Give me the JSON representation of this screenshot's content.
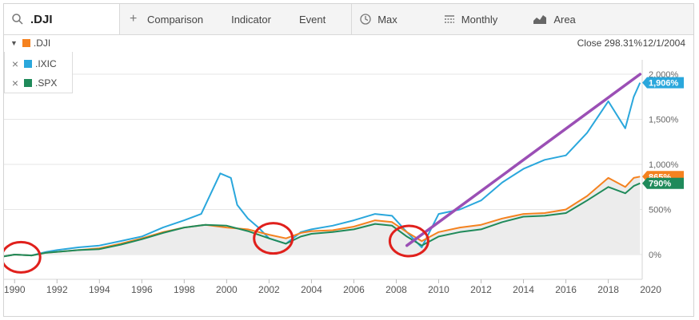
{
  "toolbar": {
    "symbol": ".DJI",
    "comparison": "Comparison",
    "indicator": "Indicator",
    "event": "Event",
    "range": "Max",
    "interval": "Monthly",
    "chart_style": "Area"
  },
  "legend": {
    "primary": {
      "label": ".DJI",
      "color": "#f5821f"
    },
    "compare": [
      {
        "label": ".IXIC",
        "color": "#2aa7dc"
      },
      {
        "label": ".SPX",
        "color": "#1f8a5a"
      }
    ]
  },
  "readout": {
    "close": "Close 298.31%",
    "date": "12/1/2004"
  },
  "tags": [
    {
      "text": "1,906%",
      "color": "#2aa7dc"
    },
    {
      "text": "865%",
      "color": "#f5821f"
    },
    {
      "text": "790%",
      "color": "#1f8a5a"
    }
  ],
  "chart_data": {
    "type": "line",
    "ylim": [
      -300,
      2000
    ],
    "yticks": [
      0,
      500,
      1000,
      1500,
      2000
    ],
    "ytick_labels": [
      "0%",
      "500%",
      "1,000%",
      "1,500%",
      "2,000%"
    ],
    "xlim": [
      1989.5,
      2019.6
    ],
    "xtick_labels": [
      "1990",
      "1992",
      "1994",
      "1996",
      "1998",
      "2000",
      "2002",
      "2004",
      "2006",
      "2008",
      "2010",
      "2012",
      "2014",
      "2016",
      "2018",
      "2020"
    ],
    "series": [
      {
        "name": ".IXIC",
        "color": "#2aa7dc",
        "x": [
          1989.5,
          1990,
          1990.8,
          1991.5,
          1992,
          1993,
          1994,
          1995,
          1996,
          1997,
          1998,
          1998.8,
          1999.3,
          1999.7,
          2000.2,
          2000.5,
          2001,
          2001.5,
          2002,
          2002.8,
          2003.5,
          2004,
          2005,
          2006,
          2007,
          2007.8,
          2008.5,
          2009.2,
          2010,
          2011,
          2012,
          2013,
          2014,
          2015,
          2016,
          2017,
          2018,
          2018.8,
          2019.2,
          2019.5
        ],
        "y": [
          -20,
          0,
          -10,
          30,
          50,
          80,
          100,
          150,
          200,
          300,
          380,
          450,
          700,
          900,
          850,
          550,
          400,
          300,
          180,
          120,
          250,
          280,
          320,
          380,
          450,
          430,
          250,
          80,
          450,
          500,
          600,
          800,
          950,
          1050,
          1100,
          1350,
          1700,
          1400,
          1750,
          1906
        ]
      },
      {
        "name": ".DJI",
        "color": "#f5821f",
        "x": [
          1989.5,
          1990,
          1990.8,
          1991.5,
          1992,
          1993,
          1994,
          1995,
          1996,
          1997,
          1998,
          1999,
          2000,
          2001,
          2002,
          2002.8,
          2003.5,
          2004,
          2005,
          2006,
          2007,
          2007.8,
          2008.5,
          2009.2,
          2010,
          2011,
          2012,
          2013,
          2014,
          2015,
          2016,
          2017,
          2018,
          2018.8,
          2019.2,
          2019.5
        ],
        "y": [
          -20,
          0,
          -10,
          20,
          30,
          50,
          70,
          120,
          180,
          250,
          300,
          330,
          300,
          280,
          220,
          180,
          240,
          260,
          270,
          310,
          380,
          360,
          250,
          150,
          250,
          300,
          330,
          400,
          450,
          460,
          500,
          650,
          850,
          750,
          850,
          865
        ]
      },
      {
        "name": ".SPX",
        "color": "#1f8a5a",
        "x": [
          1989.5,
          1990,
          1990.8,
          1991.5,
          1992,
          1993,
          1994,
          1995,
          1996,
          1997,
          1998,
          1999,
          2000,
          2001,
          2002,
          2002.8,
          2003.5,
          2004,
          2005,
          2006,
          2007,
          2007.8,
          2008.5,
          2009.2,
          2010,
          2011,
          2012,
          2013,
          2014,
          2015,
          2016,
          2017,
          2018,
          2018.8,
          2019.2,
          2019.5
        ],
        "y": [
          -20,
          0,
          -10,
          20,
          30,
          50,
          60,
          110,
          170,
          240,
          300,
          330,
          320,
          260,
          180,
          120,
          200,
          230,
          250,
          280,
          340,
          320,
          200,
          100,
          200,
          250,
          280,
          360,
          420,
          430,
          460,
          600,
          750,
          680,
          760,
          790
        ]
      }
    ],
    "trendline": {
      "color": "#9b4fb5",
      "x": [
        2008.5,
        2019.5
      ],
      "y": [
        100,
        2000
      ]
    },
    "circles": {
      "color": "#e0201c",
      "x": [
        1990.3,
        2002.2,
        2008.6
      ],
      "y": [
        -30,
        180,
        150
      ]
    }
  }
}
